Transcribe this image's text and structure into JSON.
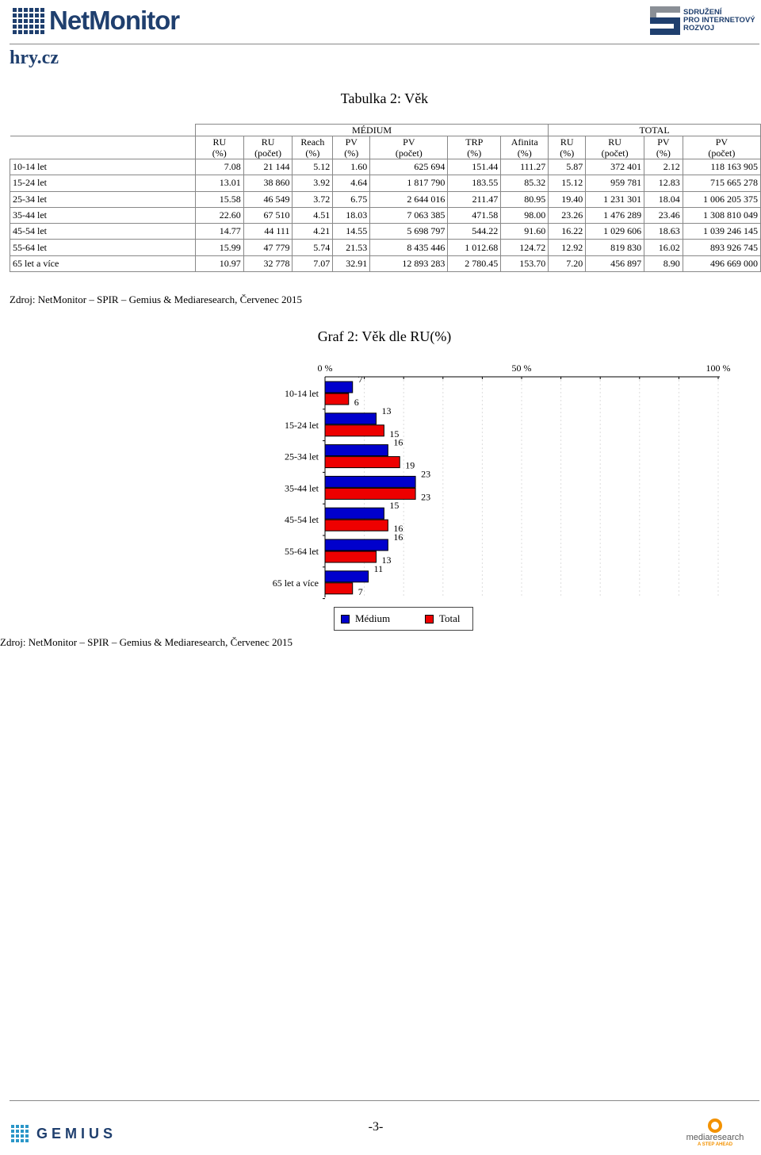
{
  "header": {
    "brand_left": "NetMonitor",
    "brand_right_lines": [
      "SDRUŽENÍ",
      "PRO INTERNETOVÝ",
      "ROZVOJ"
    ],
    "site": "hry.cz"
  },
  "table": {
    "title": "Tabulka 2: Věk",
    "group_medium": "MÉDIUM",
    "group_total": "TOTAL",
    "columns_medium": [
      [
        "RU",
        "(%)"
      ],
      [
        "RU",
        "(počet)"
      ],
      [
        "Reach",
        "(%)"
      ],
      [
        "PV",
        "(%)"
      ],
      [
        "PV",
        "(počet)"
      ],
      [
        "TRP",
        "(%)"
      ],
      [
        "Afinita",
        "(%)"
      ]
    ],
    "columns_total": [
      [
        "RU",
        "(%)"
      ],
      [
        "RU",
        "(počet)"
      ],
      [
        "PV",
        "(%)"
      ],
      [
        "PV",
        "(počet)"
      ]
    ],
    "rows": [
      {
        "label": "10-14 let",
        "values": [
          "7.08",
          "21 144",
          "5.12",
          "1.60",
          "625 694",
          "151.44",
          "111.27",
          "5.87",
          "372 401",
          "2.12",
          "118 163 905"
        ]
      },
      {
        "label": "15-24 let",
        "values": [
          "13.01",
          "38 860",
          "3.92",
          "4.64",
          "1 817 790",
          "183.55",
          "85.32",
          "15.12",
          "959 781",
          "12.83",
          "715 665 278"
        ]
      },
      {
        "label": "25-34 let",
        "values": [
          "15.58",
          "46 549",
          "3.72",
          "6.75",
          "2 644 016",
          "211.47",
          "80.95",
          "19.40",
          "1 231 301",
          "18.04",
          "1 006 205 375"
        ]
      },
      {
        "label": "35-44 let",
        "values": [
          "22.60",
          "67 510",
          "4.51",
          "18.03",
          "7 063 385",
          "471.58",
          "98.00",
          "23.26",
          "1 476 289",
          "23.46",
          "1 308 810 049"
        ]
      },
      {
        "label": "45-54 let",
        "values": [
          "14.77",
          "44 111",
          "4.21",
          "14.55",
          "5 698 797",
          "544.22",
          "91.60",
          "16.22",
          "1 029 606",
          "18.63",
          "1 039 246 145"
        ]
      },
      {
        "label": "55-64 let",
        "values": [
          "15.99",
          "47 779",
          "5.74",
          "21.53",
          "8 435 446",
          "1 012.68",
          "124.72",
          "12.92",
          "819 830",
          "16.02",
          "893 926 745"
        ]
      },
      {
        "label": "65 let a více",
        "values": [
          "10.97",
          "32 778",
          "7.07",
          "32.91",
          "12 893 283",
          "2 780.45",
          "153.70",
          "7.20",
          "456 897",
          "8.90",
          "496 669 000"
        ]
      }
    ],
    "source": "Zdroj: NetMonitor – SPIR – Gemius & Mediaresearch, Červenec 2015"
  },
  "chart_data": {
    "type": "bar",
    "orientation": "horizontal",
    "title": "Graf 2: Věk dle RU(%)",
    "categories": [
      "10-14 let",
      "15-24 let",
      "25-34 let",
      "35-44 let",
      "45-54 let",
      "55-64 let",
      "65 let a více"
    ],
    "series": [
      {
        "name": "Médium",
        "color": "#0000cc",
        "values": [
          7,
          13,
          16,
          23,
          15,
          16,
          11
        ],
        "labels": [
          "7",
          "13",
          "16",
          "23",
          "15",
          "16",
          "11"
        ]
      },
      {
        "name": "Total",
        "color": "#ee0000",
        "values": [
          6,
          15,
          19,
          23,
          16,
          13,
          7
        ],
        "labels": [
          "6",
          "15",
          "19",
          "23",
          "16",
          "13",
          "7"
        ]
      }
    ],
    "xlim": [
      0,
      100
    ],
    "x_tick_labels": [
      "0 %",
      "50 %",
      "100 %"
    ],
    "legend_position": "bottom",
    "source": "Zdroj: NetMonitor – SPIR – Gemius & Mediaresearch, Červenec 2015"
  },
  "footer": {
    "brand_left": "GEMIUS",
    "page_number": "-3-",
    "brand_right": "mediaresearch",
    "brand_right_tag": "A STEP AHEAD"
  }
}
